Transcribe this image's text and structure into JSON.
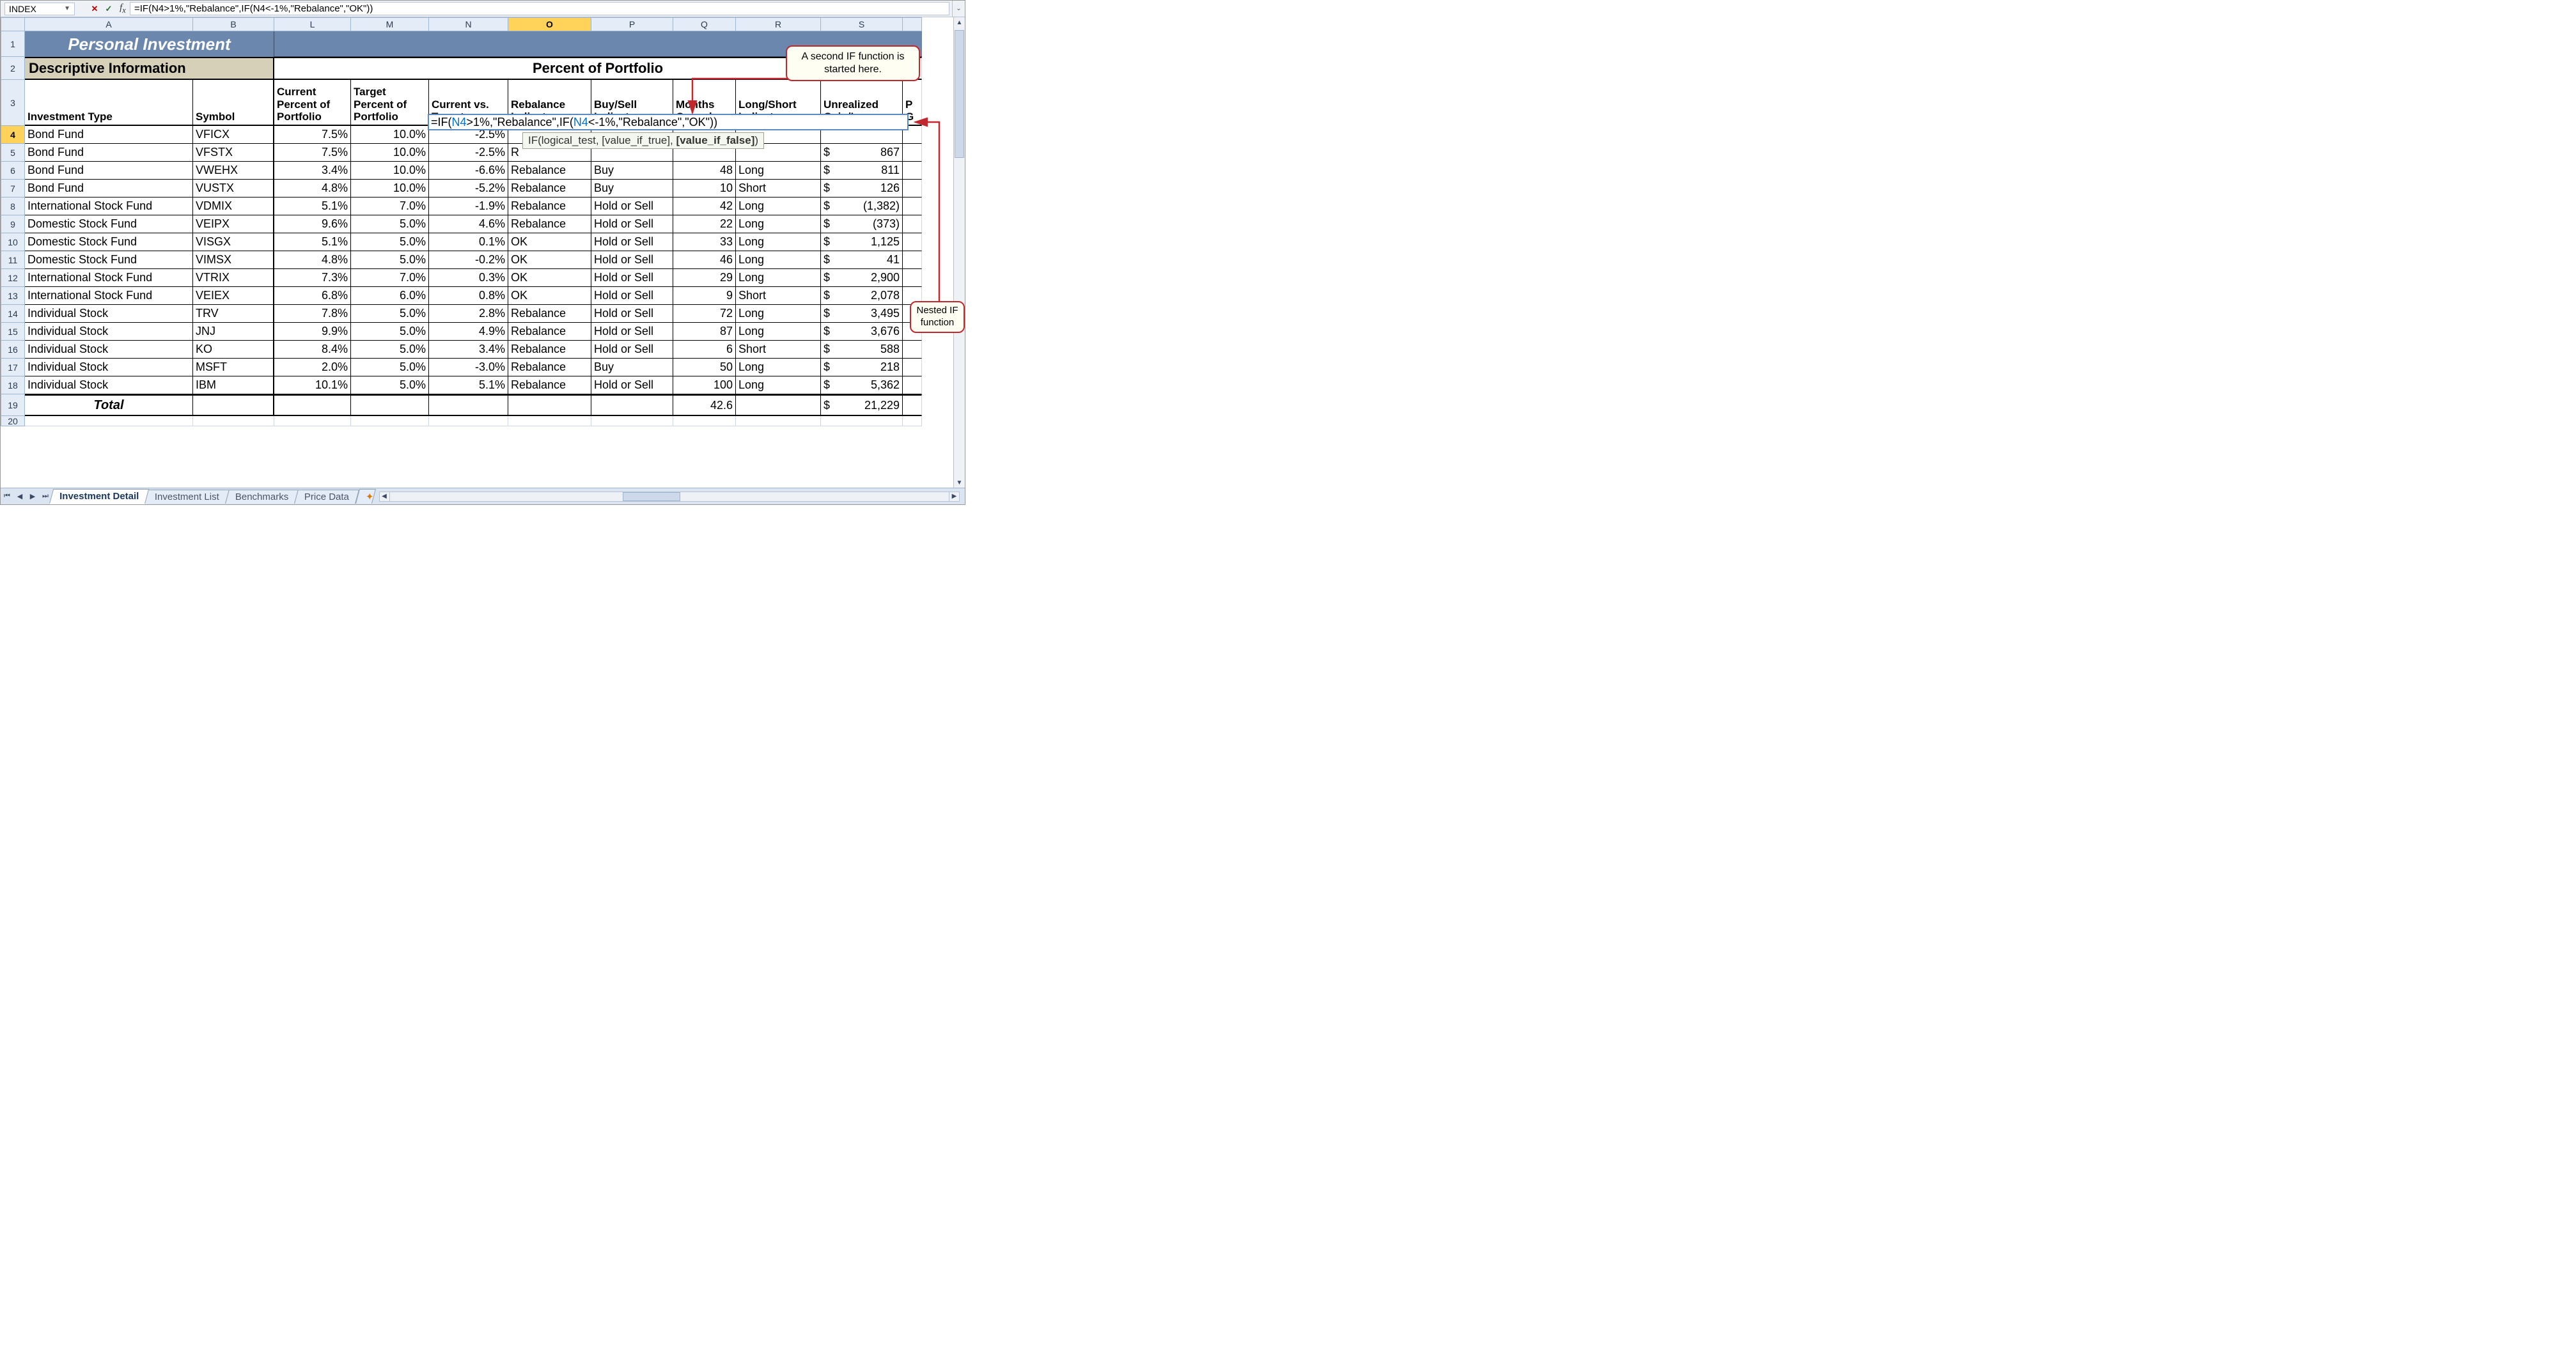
{
  "name_box": "INDEX",
  "formula_bar": "=IF(N4>1%,\"Rebalance\",IF(N4<-1%,\"Rebalance\",\"OK\"))",
  "title": "Personal Investment",
  "section_left": "Descriptive Information",
  "section_right": "Percent of Portfolio",
  "col_letters": [
    "A",
    "B",
    "L",
    "M",
    "N",
    "O",
    "P",
    "Q",
    "R",
    "S",
    ""
  ],
  "active_col_index": 5,
  "row_numbers": [
    "1",
    "2",
    "3",
    "4",
    "5",
    "6",
    "7",
    "8",
    "9",
    "10",
    "11",
    "12",
    "13",
    "14",
    "15",
    "16",
    "17",
    "18",
    "19",
    "20"
  ],
  "headers": {
    "a": "Investment Type",
    "b": "Symbol",
    "l": "Current Percent of Portfolio",
    "m": "Target Percent of Portfolio",
    "n": "Current vs. Target",
    "o": "Rebalance Indicator",
    "p": "Buy/Sell Indicator",
    "q": "Months Owned",
    "r": "Long/Short Indicator",
    "s": "Unrealized Gain/Loss",
    "t": "P G"
  },
  "rows": [
    {
      "type": "Bond Fund",
      "sym": "VFICX",
      "cur": "7.5%",
      "tgt": "10.0%",
      "cvt": "-2.5%",
      "reb": "",
      "bs": "",
      "mo": "",
      "ls": "",
      "ugl": ""
    },
    {
      "type": "Bond Fund",
      "sym": "VFSTX",
      "cur": "7.5%",
      "tgt": "10.0%",
      "cvt": "-2.5%",
      "reb": "R",
      "bs": "",
      "mo": "",
      "ls": "",
      "ugl": "867"
    },
    {
      "type": "Bond Fund",
      "sym": "VWEHX",
      "cur": "3.4%",
      "tgt": "10.0%",
      "cvt": "-6.6%",
      "reb": "Rebalance",
      "bs": "Buy",
      "mo": "48",
      "ls": "Long",
      "ugl": "811"
    },
    {
      "type": "Bond Fund",
      "sym": "VUSTX",
      "cur": "4.8%",
      "tgt": "10.0%",
      "cvt": "-5.2%",
      "reb": "Rebalance",
      "bs": "Buy",
      "mo": "10",
      "ls": "Short",
      "ugl": "126"
    },
    {
      "type": "International Stock Fund",
      "sym": "VDMIX",
      "cur": "5.1%",
      "tgt": "7.0%",
      "cvt": "-1.9%",
      "reb": "Rebalance",
      "bs": "Hold or Sell",
      "mo": "42",
      "ls": "Long",
      "ugl": "(1,382)"
    },
    {
      "type": "Domestic Stock Fund",
      "sym": "VEIPX",
      "cur": "9.6%",
      "tgt": "5.0%",
      "cvt": "4.6%",
      "reb": "Rebalance",
      "bs": "Hold or Sell",
      "mo": "22",
      "ls": "Long",
      "ugl": "(373)"
    },
    {
      "type": "Domestic Stock Fund",
      "sym": "VISGX",
      "cur": "5.1%",
      "tgt": "5.0%",
      "cvt": "0.1%",
      "reb": "OK",
      "bs": "Hold or Sell",
      "mo": "33",
      "ls": "Long",
      "ugl": "1,125"
    },
    {
      "type": "Domestic Stock Fund",
      "sym": "VIMSX",
      "cur": "4.8%",
      "tgt": "5.0%",
      "cvt": "-0.2%",
      "reb": "OK",
      "bs": "Hold or Sell",
      "mo": "46",
      "ls": "Long",
      "ugl": "41"
    },
    {
      "type": "International Stock Fund",
      "sym": "VTRIX",
      "cur": "7.3%",
      "tgt": "7.0%",
      "cvt": "0.3%",
      "reb": "OK",
      "bs": "Hold or Sell",
      "mo": "29",
      "ls": "Long",
      "ugl": "2,900"
    },
    {
      "type": "International Stock Fund",
      "sym": "VEIEX",
      "cur": "6.8%",
      "tgt": "6.0%",
      "cvt": "0.8%",
      "reb": "OK",
      "bs": "Hold or Sell",
      "mo": "9",
      "ls": "Short",
      "ugl": "2,078"
    },
    {
      "type": "Individual Stock",
      "sym": "TRV",
      "cur": "7.8%",
      "tgt": "5.0%",
      "cvt": "2.8%",
      "reb": "Rebalance",
      "bs": "Hold or Sell",
      "mo": "72",
      "ls": "Long",
      "ugl": "3,495"
    },
    {
      "type": "Individual Stock",
      "sym": "JNJ",
      "cur": "9.9%",
      "tgt": "5.0%",
      "cvt": "4.9%",
      "reb": "Rebalance",
      "bs": "Hold or Sell",
      "mo": "87",
      "ls": "Long",
      "ugl": "3,676"
    },
    {
      "type": "Individual Stock",
      "sym": "KO",
      "cur": "8.4%",
      "tgt": "5.0%",
      "cvt": "3.4%",
      "reb": "Rebalance",
      "bs": "Hold or Sell",
      "mo": "6",
      "ls": "Short",
      "ugl": "588"
    },
    {
      "type": "Individual Stock",
      "sym": "MSFT",
      "cur": "2.0%",
      "tgt": "5.0%",
      "cvt": "-3.0%",
      "reb": "Rebalance",
      "bs": "Buy",
      "mo": "50",
      "ls": "Long",
      "ugl": "218"
    },
    {
      "type": "Individual Stock",
      "sym": "IBM",
      "cur": "10.1%",
      "tgt": "5.0%",
      "cvt": "5.1%",
      "reb": "Rebalance",
      "bs": "Hold or Sell",
      "mo": "100",
      "ls": "Long",
      "ugl": "5,362"
    }
  ],
  "total": {
    "label": "Total",
    "mo": "42.6",
    "ugl": "21,229"
  },
  "editing_formula_html": "=IF(<span style='color:#0070c0'>N4</span>&gt;1%,\"Rebalance\",IF(<span style='color:#0070c0'>N4</span>&lt;-1%,\"Rebalance\",\"OK\"))",
  "tooltip_html": "IF(logical_test, [value_if_true], <b>[value_if_false]</b>)",
  "callout_top": "A second IF function is started here.",
  "callout_right": "Nested IF function",
  "sheet_tabs": [
    "Investment Detail",
    "Investment List",
    "Benchmarks",
    "Price Data"
  ],
  "active_tab_index": 0,
  "colors": {
    "header_bg": "#e4ecf7",
    "title_bg": "#6b87ad",
    "desc_bg": "#d6d0b8",
    "active_col": "#ffd35a",
    "callout_border": "#c1272d"
  }
}
